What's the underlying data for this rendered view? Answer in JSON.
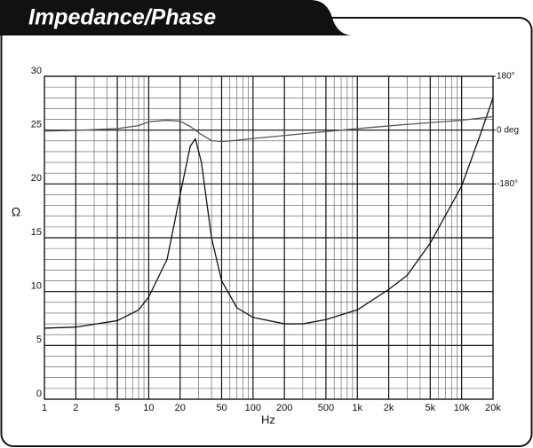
{
  "chart_data": {
    "type": "line",
    "title": "Impedance/Phase",
    "x_label": "Hz",
    "y_label": "Ω",
    "x": [
      1,
      2,
      5,
      8,
      10,
      15,
      20,
      25,
      28,
      32,
      40,
      50,
      70,
      100,
      200,
      300,
      500,
      1000,
      2000,
      3000,
      5000,
      10000,
      15000,
      20000
    ],
    "series": [
      {
        "name": "Impedance",
        "color": "#111111",
        "values": [
          6.6,
          6.7,
          7.3,
          8.3,
          9.5,
          13,
          19,
          23.5,
          24.2,
          22,
          15,
          11,
          8.5,
          7.6,
          7.0,
          7.0,
          7.4,
          8.3,
          10.2,
          11.5,
          14.5,
          19.8,
          24.5,
          28
        ]
      },
      {
        "name": "Phase",
        "color": "#555555",
        "axis": "y2",
        "values": [
          -3,
          -1,
          5,
          15,
          28,
          33,
          30,
          12,
          0,
          -15,
          -35,
          -38,
          -34,
          -28,
          -18,
          -12,
          -5,
          5,
          14,
          19,
          25,
          33,
          40,
          45
        ]
      }
    ],
    "xscale": "log",
    "xlim": [
      1,
      20000
    ],
    "xticks": [
      1,
      2,
      5,
      10,
      20,
      50,
      100,
      200,
      500,
      {
        "value": 1000,
        "label": "1k"
      },
      {
        "value": 2000,
        "label": "2k"
      },
      {
        "value": 5000,
        "label": "5k"
      },
      {
        "value": 10000,
        "label": "10k"
      },
      {
        "value": 20000,
        "label": "20k"
      }
    ],
    "ylim": [
      0,
      30
    ],
    "yticks": [
      0,
      5,
      10,
      15,
      20,
      25,
      30
    ],
    "y2lim": [
      -900,
      180
    ],
    "y2ticks": [
      {
        "value": 180,
        "label": "180°"
      },
      {
        "value": 0,
        "label": "0 deg"
      },
      {
        "value": -180,
        "label": "-180°"
      }
    ],
    "grid": true
  }
}
